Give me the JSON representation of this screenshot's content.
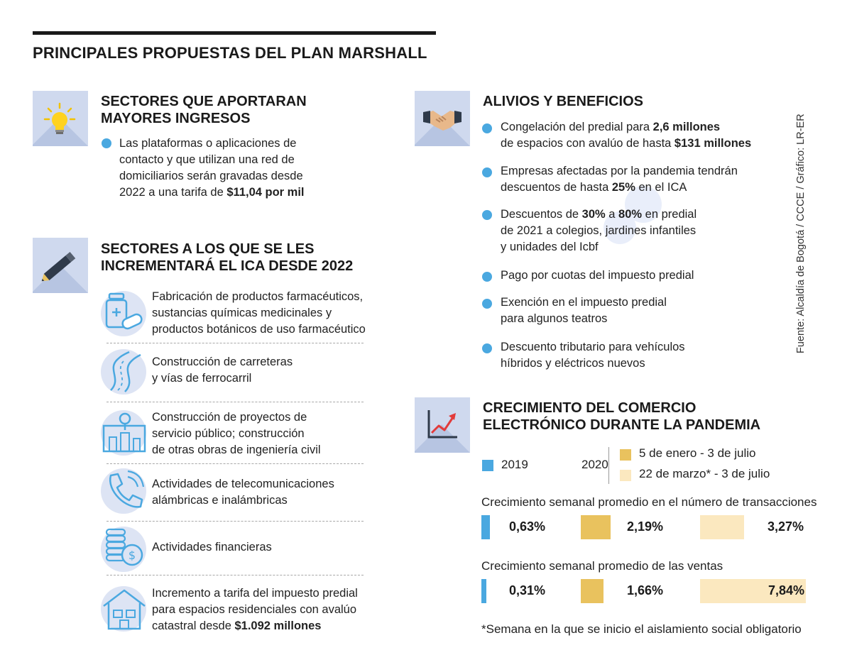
{
  "title": "PRINCIPALES PROPUESTAS DEL PLAN MARSHALL",
  "source": "Fuente: Alcaldía de Bogotá / CCCE / Gráfico: LR-ER",
  "sectores_ingresos": {
    "title_line1": "SECTORES QUE APORTARAN",
    "title_line2": "MAYORES INGRESOS",
    "line1": "Las plataformas o aplicaciones de",
    "line2": "contacto y que utilizan una red de",
    "line3": "domiciliarios serán gravadas desde",
    "line4_pre": "2022 a una tarifa de ",
    "line4_bold": "$11,04 por mil"
  },
  "sectores_ica": {
    "title_line1": "SECTORES A LOS QUE SE LES",
    "title_line2": "INCREMENTARÁ EL ICA DESDE 2022",
    "items": [
      {
        "l1": "Fabricación de productos farmacéuticos,",
        "l2": "sustancias químicas medicinales y",
        "l3": "productos botánicos de uso farmacéutico"
      },
      {
        "l1": "Construcción de carreteras",
        "l2": "y vías de ferrocarril"
      },
      {
        "l1": "Construcción de proyectos de",
        "l2": "servicio público; construcción",
        "l3": "de otras obras de ingeniería civil"
      },
      {
        "l1": "Actividades de telecomunicaciones",
        "l2": "alámbricas e inalámbricas"
      },
      {
        "l1": "Actividades financieras"
      },
      {
        "l1": "Incremento a tarifa del impuesto predial",
        "l2": "para espacios residenciales con avalúo",
        "l3_pre": "catastral desde ",
        "l3_bold": "$1.092 millones"
      }
    ]
  },
  "alivios": {
    "title": "ALIVIOS Y BENEFICIOS",
    "b1": {
      "pre": "Congelación del predial para ",
      "bold1": "2,6 millones",
      "l2_pre": "de espacios con avalúo de hasta ",
      "bold2": "$131 millones"
    },
    "b2": {
      "l1": "Empresas afectadas por la pandemia tendrán",
      "l2_pre": "descuentos de hasta ",
      "bold": "25%",
      "l2_post": " en el ICA"
    },
    "b3": {
      "pre": "Descuentos de ",
      "bold1": "30%",
      "mid": " a ",
      "bold2": "80%",
      "post": " en predial",
      "l2": "de 2021 a colegios, jardines infantiles",
      "l3": "y unidades del Icbf"
    },
    "b4": "Pago por cuotas del impuesto predial",
    "b5": {
      "l1": "Exención en el impuesto predial",
      "l2": "para algunos teatros"
    },
    "b6": {
      "l1": "Descuento tributario para vehículos",
      "l2": "híbridos y eléctricos nuevos"
    }
  },
  "comercio": {
    "title_line1": "CRECIMIENTO DEL COMERCIO",
    "title_line2": "ELECTRÓNICO DURANTE LA PANDEMIA",
    "year_2019": "2019",
    "year_2020": "2020",
    "footnote": "*Semana en la que se inicio el aislamiento social obligatorio"
  },
  "colors": {
    "blue": "#4aa8e0",
    "gold": "#e9c25e",
    "cream": "#fbe8bf",
    "icon_bg": "#cfd9ee"
  },
  "chart_data": {
    "type": "bar",
    "title": "CRECIMIENTO DEL COMERCIO ELECTRÓNICO DURANTE LA PANDEMIA",
    "series": [
      {
        "name": "2019",
        "color": "#4aa8e0"
      },
      {
        "name": "5 de enero - 3 de julio",
        "group": "2020",
        "color": "#e9c25e"
      },
      {
        "name": "22 de marzo* - 3 de julio",
        "group": "2020",
        "color": "#fbe8bf"
      }
    ],
    "categories": [
      {
        "label": "Crecimiento semanal promedio en el número de transacciones",
        "values": [
          0.63,
          2.19,
          3.27
        ],
        "display": [
          "0,63%",
          "2,19%",
          "3,27%"
        ]
      },
      {
        "label": "Crecimiento semanal promedio de las ventas",
        "values": [
          0.31,
          1.66,
          7.84
        ],
        "display": [
          "0,31%",
          "1,66%",
          "7,84%"
        ]
      }
    ],
    "unit": "%"
  }
}
